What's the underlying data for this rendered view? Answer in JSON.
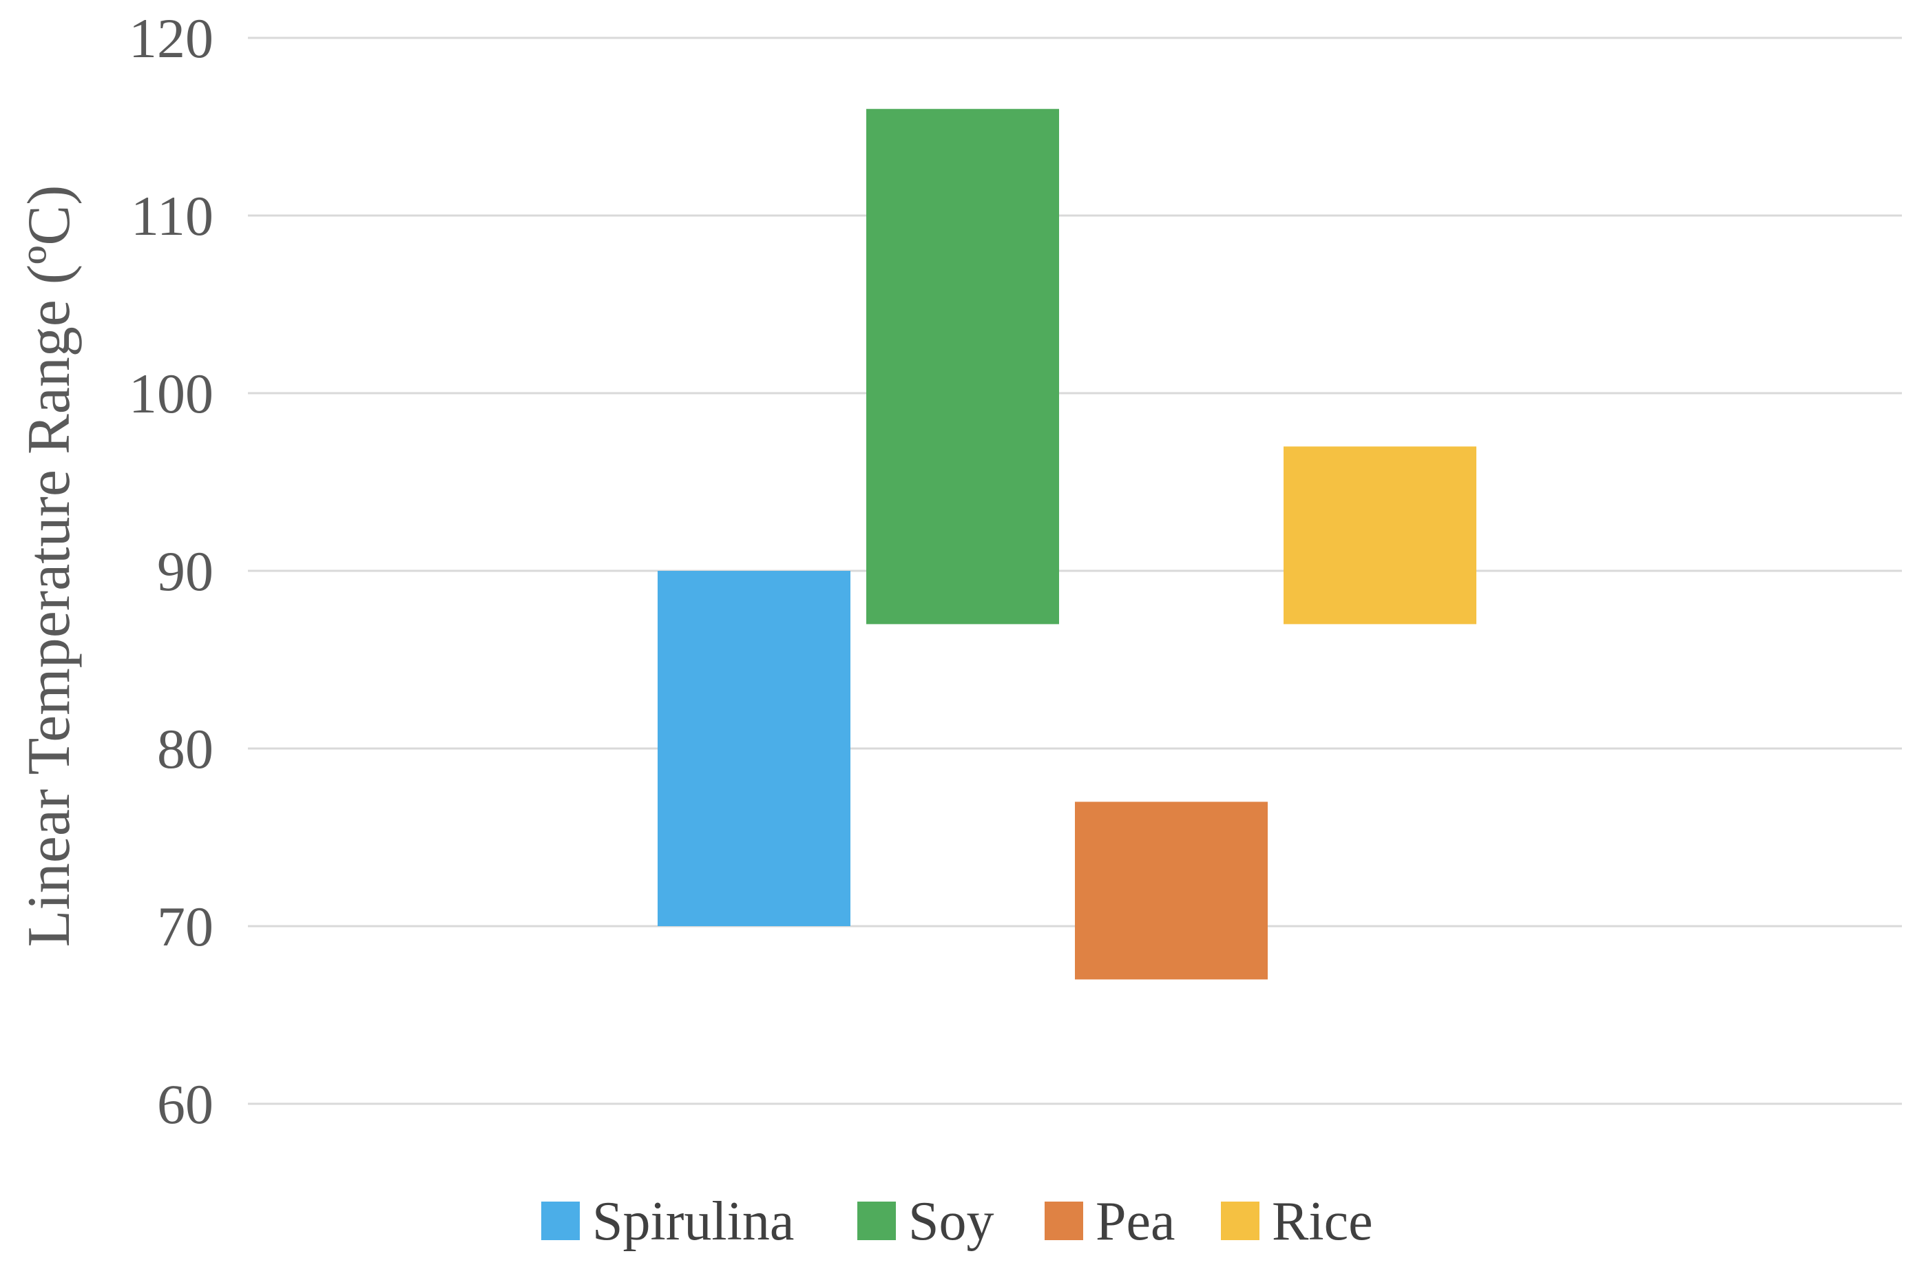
{
  "chart_data": {
    "type": "bar",
    "subtype": "floating-range",
    "title": "",
    "xlabel": "",
    "ylabel": "Linear Temperature Range (ºC)",
    "ylim": [
      60,
      120
    ],
    "yticks": [
      60,
      70,
      80,
      90,
      100,
      110,
      120
    ],
    "grid": true,
    "legend_position": "bottom",
    "series": [
      {
        "name": "Spirulina",
        "low": 70,
        "high": 90,
        "color": "#4baee8"
      },
      {
        "name": "Soy",
        "low": 87,
        "high": 116,
        "color": "#50ab5c"
      },
      {
        "name": "Pea",
        "low": 67,
        "high": 77,
        "color": "#df8244"
      },
      {
        "name": "Rice",
        "low": 87,
        "high": 97,
        "color": "#f5c142"
      }
    ]
  }
}
